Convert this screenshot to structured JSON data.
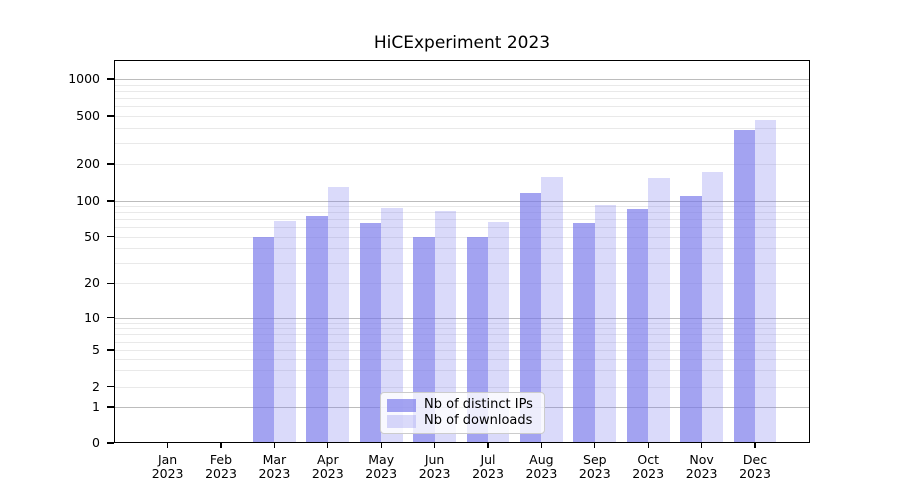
{
  "title": "HiCExperiment 2023",
  "chart_data": {
    "type": "bar",
    "title": "HiCExperiment 2023",
    "categories": [
      "Jan 2023",
      "Feb 2023",
      "Mar 2023",
      "Apr 2023",
      "May 2023",
      "Jun 2023",
      "Jul 2023",
      "Aug 2023",
      "Sep 2023",
      "Oct 2023",
      "Nov 2023",
      "Dec 2023"
    ],
    "series": [
      {
        "name": "Nb of distinct IPs",
        "color": "#7878eb",
        "alpha": 0.68,
        "values": [
          0,
          0,
          50,
          75,
          65,
          50,
          50,
          117,
          65,
          86,
          110,
          380
        ]
      },
      {
        "name": "Nb of downloads",
        "color": "#7878eb",
        "alpha": 0.27,
        "values": [
          0,
          0,
          68,
          130,
          87,
          82,
          66,
          157,
          92,
          155,
          172,
          465
        ]
      }
    ],
    "xlabel": "",
    "ylabel": "",
    "yscale": "symlog",
    "yticks": [
      0,
      1,
      2,
      5,
      10,
      20,
      50,
      100,
      200,
      500,
      1000
    ],
    "ylim": [
      0,
      1400
    ],
    "grid": true,
    "legend_position": "lower center"
  }
}
